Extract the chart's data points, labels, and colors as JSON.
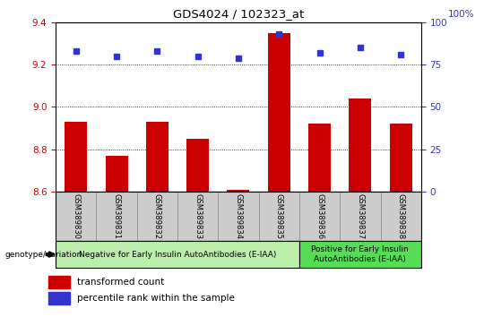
{
  "title": "GDS4024 / 102323_at",
  "samples": [
    "GSM389830",
    "GSM389831",
    "GSM389832",
    "GSM389833",
    "GSM389834",
    "GSM389835",
    "GSM389836",
    "GSM389837",
    "GSM389838"
  ],
  "bar_values": [
    8.93,
    8.77,
    8.93,
    8.85,
    8.61,
    9.35,
    8.92,
    9.04,
    8.92
  ],
  "dot_values": [
    83,
    80,
    83,
    80,
    79,
    93,
    82,
    85,
    81
  ],
  "ylim_left": [
    8.6,
    9.4
  ],
  "ylim_right": [
    0,
    100
  ],
  "yticks_left": [
    8.6,
    8.8,
    9.0,
    9.2,
    9.4
  ],
  "yticks_right": [
    0,
    25,
    50,
    75,
    100
  ],
  "bar_color": "#cc0000",
  "dot_color": "#3333cc",
  "group1_label": "Negative for Early Insulin AutoAntibodies (E-IAA)",
  "group2_label": "Positive for Early Insulin\nAutoAntibodies (E-IAA)",
  "group1_color": "#bbeeaa",
  "group2_color": "#55dd55",
  "genotype_label": "genotype/variation",
  "legend_bar_label": "transformed count",
  "legend_dot_label": "percentile rank within the sample",
  "background_color": "#ffffff",
  "tick_bg_color": "#cccccc",
  "grid_color": "#000000"
}
